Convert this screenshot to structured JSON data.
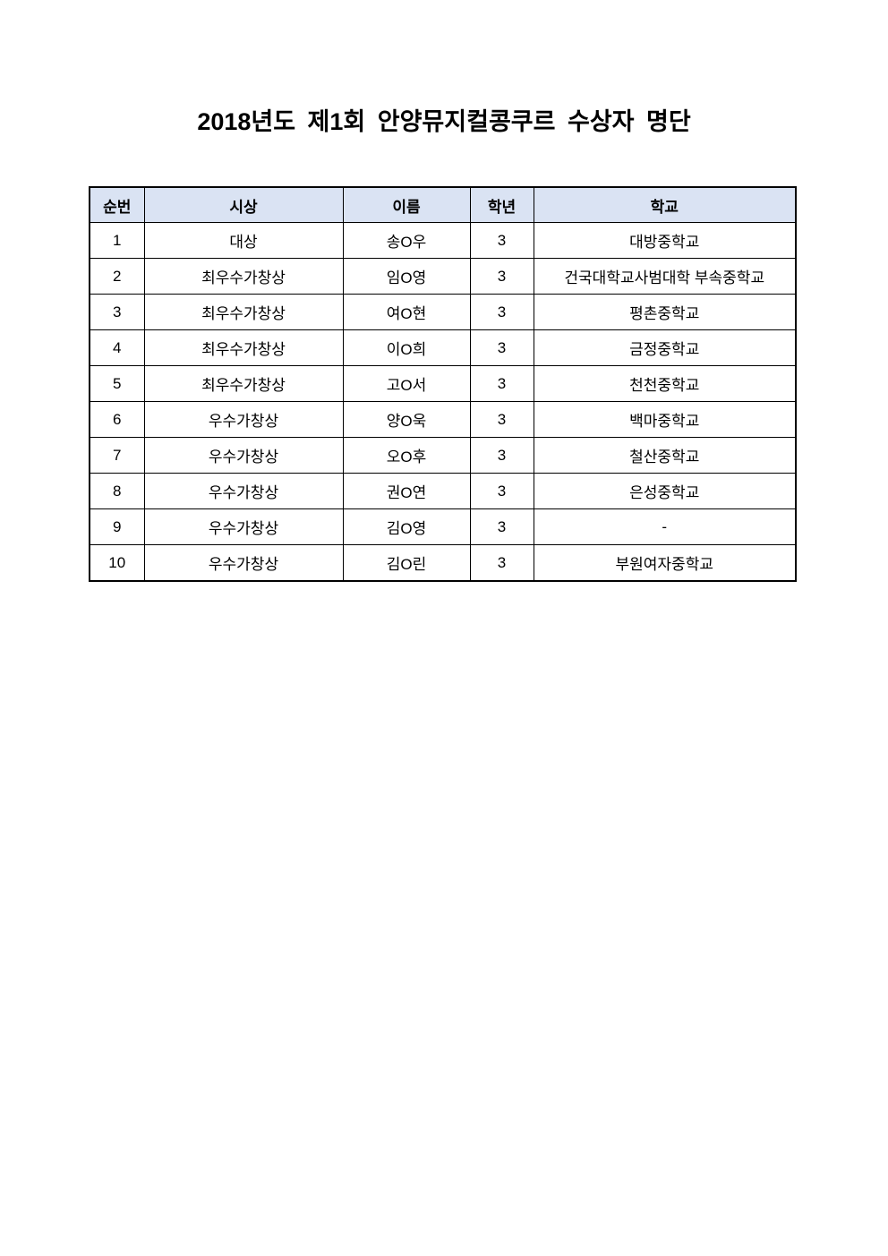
{
  "title": "2018년도 제1회 안양뮤지컬콩쿠르 수상자 명단",
  "table": {
    "headers": [
      "순번",
      "시상",
      "이름",
      "학년",
      "학교"
    ],
    "header_bg": "#dae3f3",
    "rows": [
      [
        "1",
        "대상",
        "송O우",
        "3",
        "대방중학교"
      ],
      [
        "2",
        "최우수가창상",
        "임O영",
        "3",
        "건국대학교사범대학 부속중학교"
      ],
      [
        "3",
        "최우수가창상",
        "여O현",
        "3",
        "평촌중학교"
      ],
      [
        "4",
        "최우수가창상",
        "이O희",
        "3",
        "금정중학교"
      ],
      [
        "5",
        "최우수가창상",
        "고O서",
        "3",
        "천천중학교"
      ],
      [
        "6",
        "우수가창상",
        "양O욱",
        "3",
        "백마중학교"
      ],
      [
        "7",
        "우수가창상",
        "오O후",
        "3",
        "철산중학교"
      ],
      [
        "8",
        "우수가창상",
        "권O연",
        "3",
        "은성중학교"
      ],
      [
        "9",
        "우수가창상",
        "김O영",
        "3",
        "-"
      ],
      [
        "10",
        "우수가창상",
        "김O린",
        "3",
        "부원여자중학교"
      ]
    ]
  }
}
